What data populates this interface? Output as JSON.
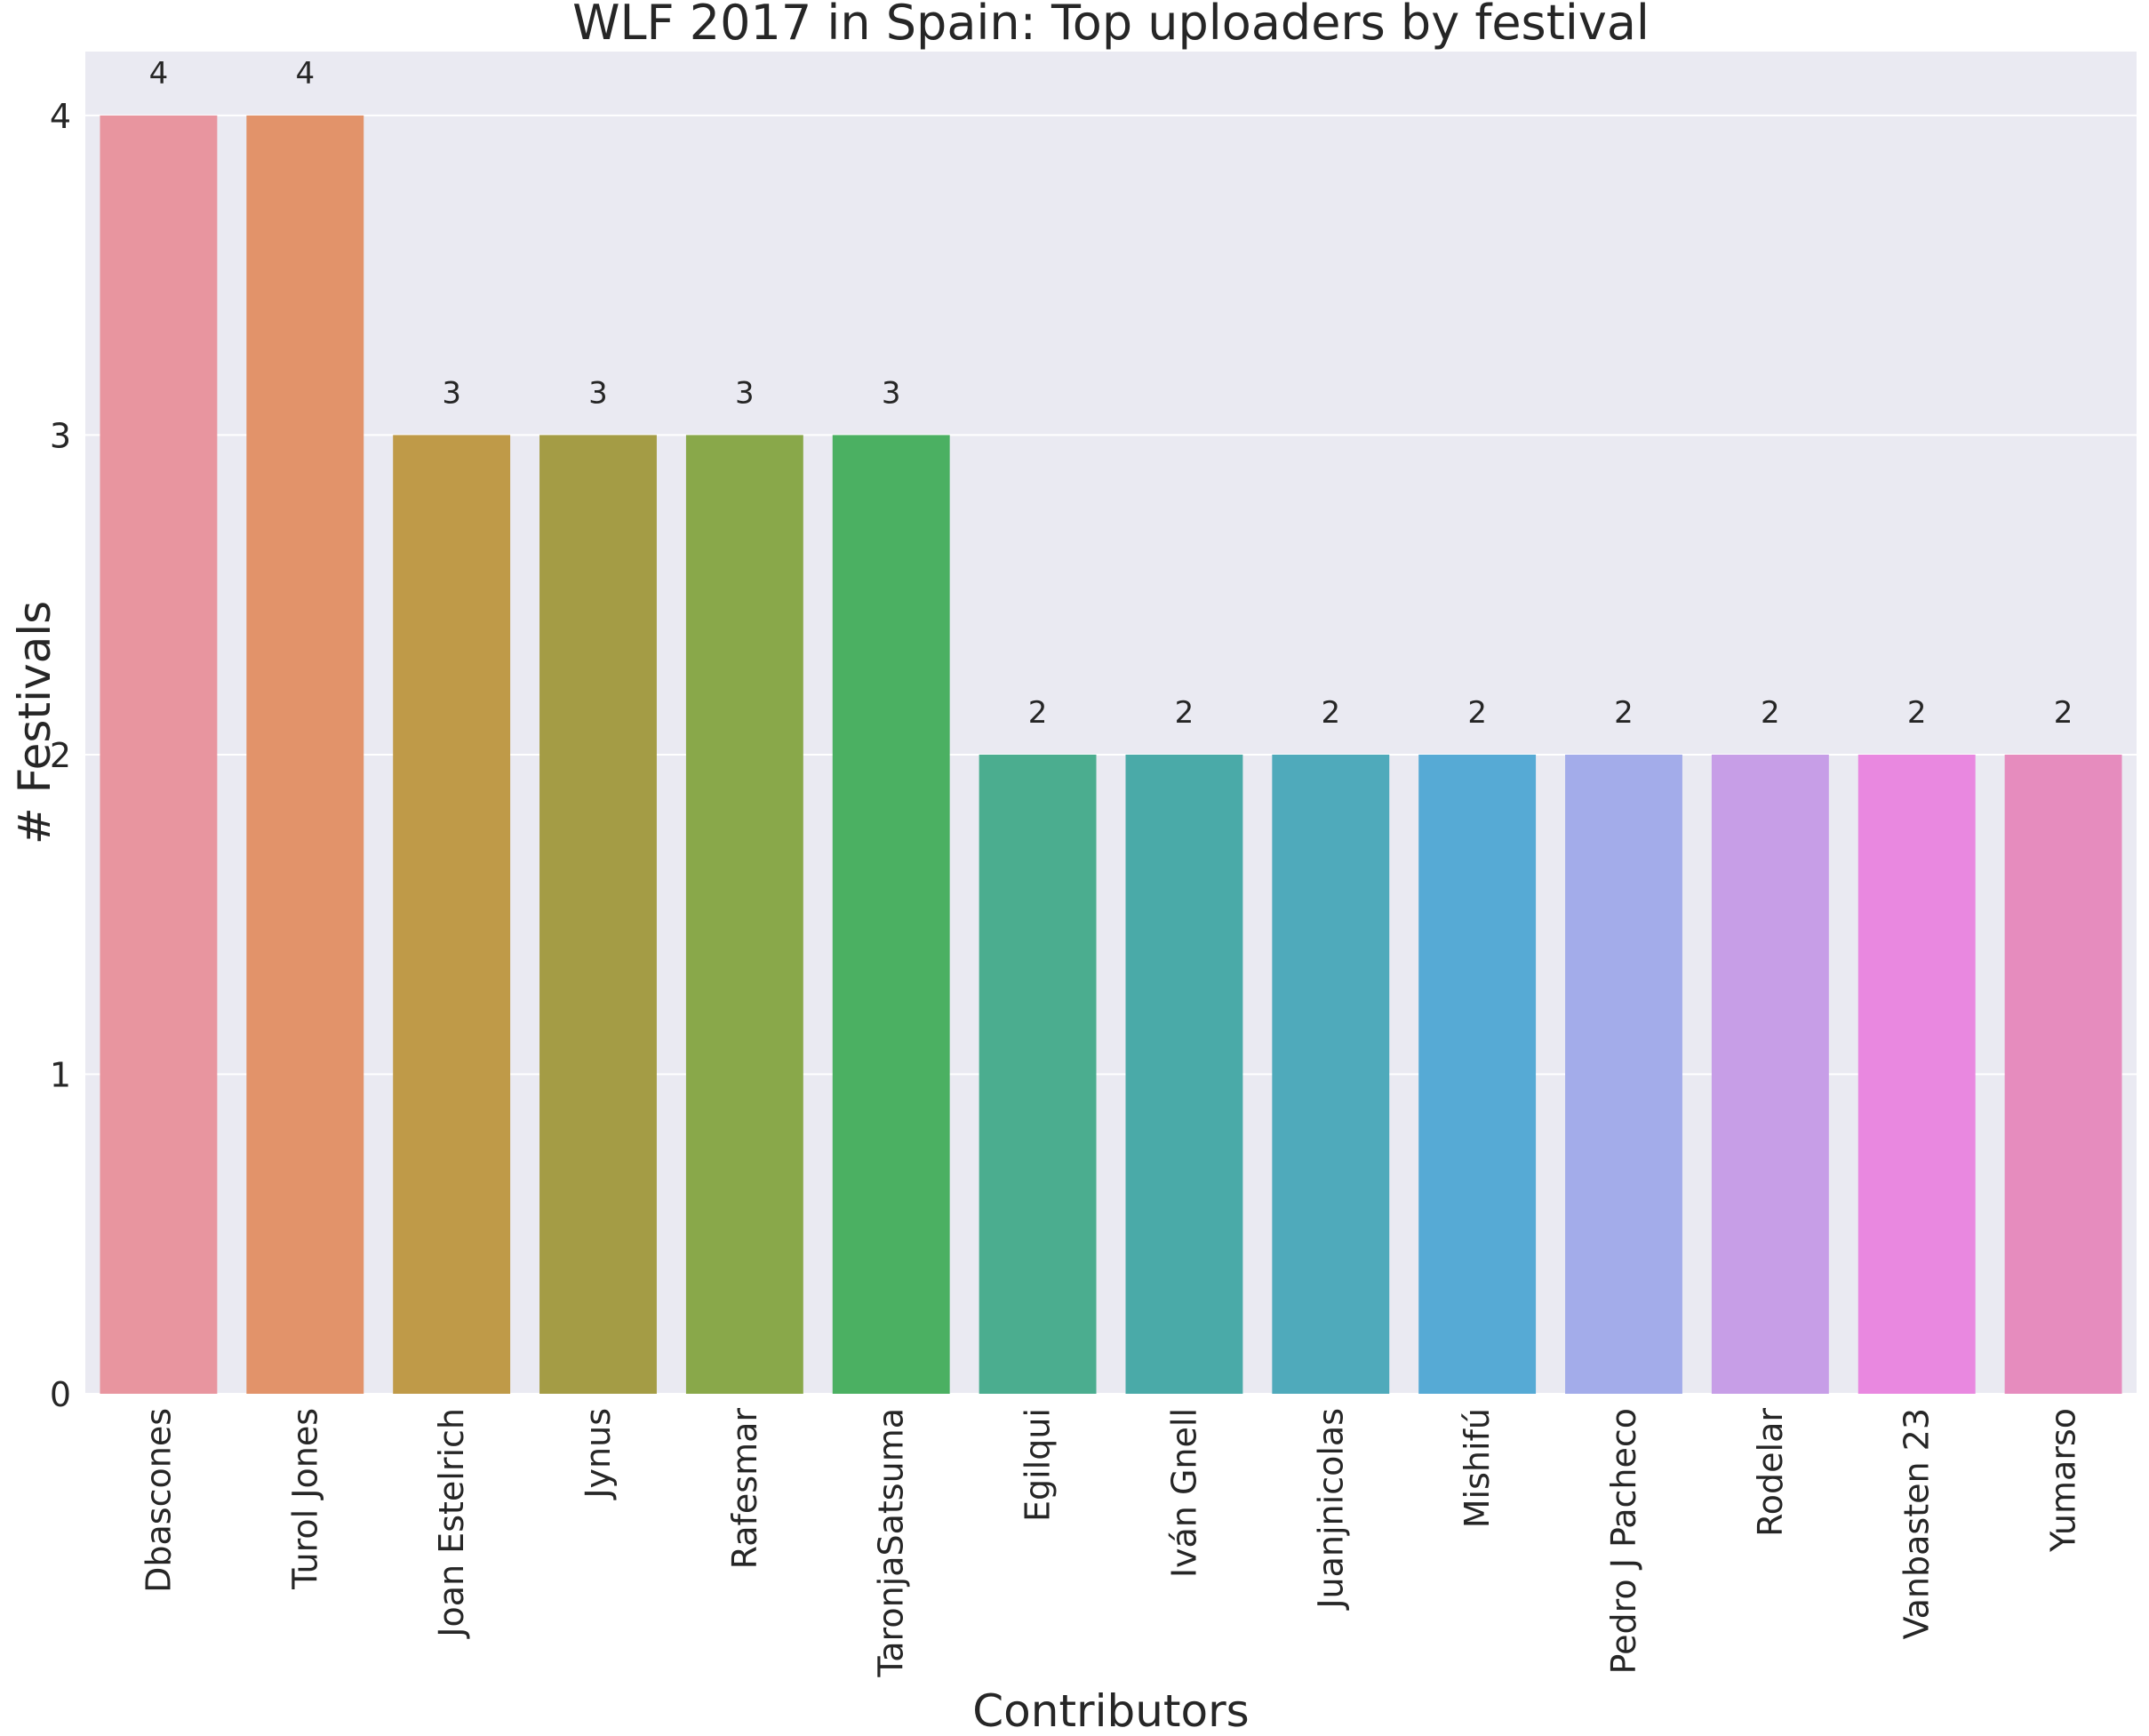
{
  "chart_data": {
    "type": "bar",
    "title": "WLF 2017 in Spain: Top uploaders by festival",
    "xlabel": "Contributors",
    "ylabel": "# Festivals",
    "categories": [
      "Dbascones",
      "Turol Jones",
      "Joan Estelrich",
      "Jynus",
      "Rafesmar",
      "TaronjaSatsuma",
      "Egilqui",
      "Iván Gnell",
      "Juanjnicolas",
      "Mishifú",
      "Pedro J Pacheco",
      "Rodelar",
      "Vanbasten 23",
      "Yumarso"
    ],
    "values": [
      4,
      4,
      3,
      3,
      3,
      3,
      2,
      2,
      2,
      2,
      2,
      2,
      2,
      2
    ],
    "data_labels": [
      "4",
      "4",
      "3",
      "3",
      "3",
      "3",
      "2",
      "2",
      "2",
      "2",
      "2",
      "2",
      "2",
      "2"
    ],
    "yticks": [
      "0",
      "1",
      "2",
      "3",
      "4"
    ],
    "ylim": [
      0,
      4.2
    ],
    "grid": true,
    "colors": [
      "#e8959f",
      "#e2936a",
      "#bf9a48",
      "#a49c45",
      "#89a84a",
      "#4bb062",
      "#4bad8f",
      "#4aaaa8",
      "#4faabb",
      "#56aad5",
      "#a3acea",
      "#c79ee7",
      "#e988e0",
      "#e68cbe"
    ],
    "background": "#eaeaf2"
  }
}
